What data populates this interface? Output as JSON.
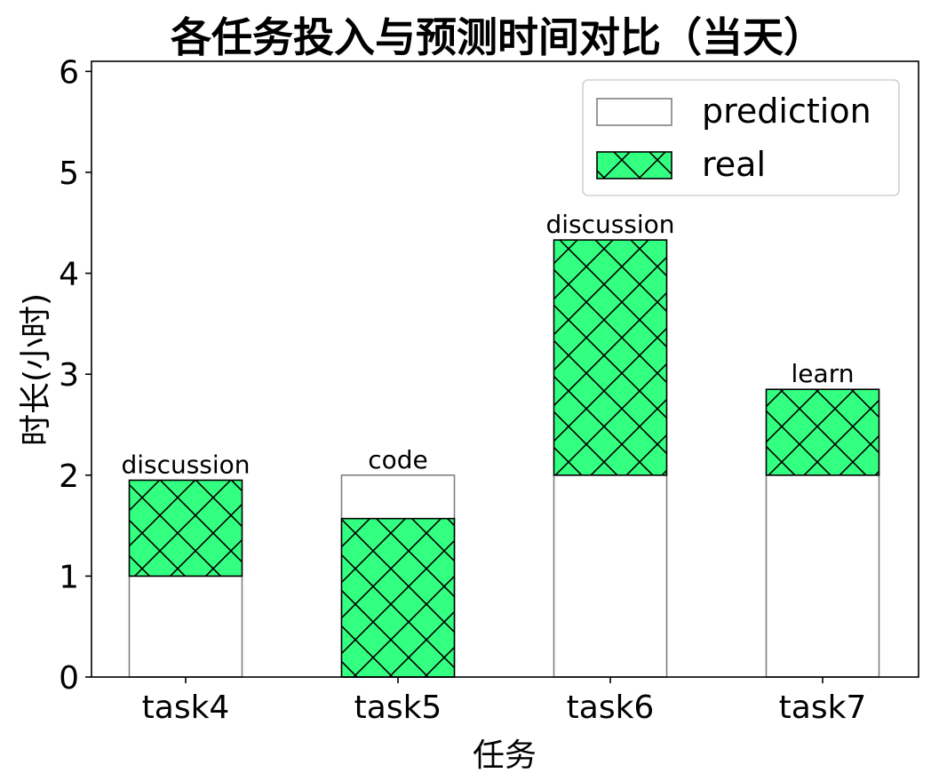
{
  "chart_data": {
    "type": "bar",
    "title": "各任务投入与预测时间对比（当天）",
    "xlabel": "任务",
    "ylabel": "时长(小时)",
    "categories": [
      "task4",
      "task5",
      "task6",
      "task7"
    ],
    "series": [
      {
        "name": "prediction",
        "values": [
          1.0,
          2.0,
          2.0,
          2.0
        ],
        "color": "#ffffff",
        "edge": "#808080"
      },
      {
        "name": "real",
        "values": [
          1.95,
          1.57,
          4.33,
          2.85
        ],
        "color": "#33ff80",
        "edge": "#000000",
        "hatch": "x"
      }
    ],
    "bar_labels": [
      "discussion",
      "code",
      "discussion",
      "learn"
    ],
    "ylim": [
      0,
      6.1
    ],
    "yticks": [
      0,
      1,
      2,
      3,
      4,
      5,
      6
    ],
    "legend": "top-right",
    "grid": false
  }
}
